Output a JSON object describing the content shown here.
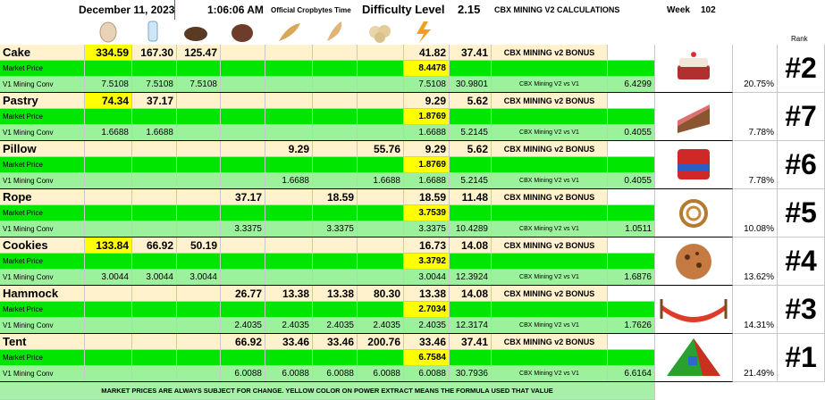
{
  "header": {
    "date": "December 11, 2023",
    "time": "1:06:06 AM",
    "time_label": "Official Cropbytes Time",
    "difficulty_label": "Difficulty Level",
    "difficulty": "2.15",
    "title": "CBX MINING V2 CALCULATIONS",
    "week_label": "Week",
    "week": "102",
    "rank_label": "Rank"
  },
  "blocks": [
    {
      "name": "Cake",
      "row1": [
        "334.59",
        "167.30",
        "125.47",
        null,
        null,
        null,
        null,
        "41.82",
        "37.41"
      ],
      "row1_highlight": [
        0
      ],
      "bonus_label": "CBX MINING v2 BONUS",
      "market_label": "Market Price",
      "market_price": "8.4478",
      "conv_label": "V1 Mining Conv",
      "conv": [
        "7.5108",
        "7.5108",
        "7.5108",
        null,
        null,
        null,
        null,
        "7.5108",
        "30.9801"
      ],
      "compare_label": "CBX Mining V2 vs V1",
      "compare_value": "6.4299",
      "percent": "20.75%",
      "rank": "#2"
    },
    {
      "name": "Pastry",
      "row1": [
        "74.34",
        "37.17",
        null,
        null,
        null,
        null,
        null,
        "9.29",
        "5.62"
      ],
      "row1_highlight": [
        0
      ],
      "bonus_label": "CBX MINING v2 BONUS",
      "market_label": "Market Price",
      "market_price": "1.8769",
      "conv_label": "V1 Mining Conv",
      "conv": [
        "1.6688",
        "1.6688",
        null,
        null,
        null,
        null,
        null,
        "1.6688",
        "5.2145"
      ],
      "compare_label": "CBX Mining V2 vs V1",
      "compare_value": "0.4055",
      "percent": "7.78%",
      "rank": "#7"
    },
    {
      "name": "Pillow",
      "row1": [
        null,
        null,
        null,
        null,
        "9.29",
        null,
        "55.76",
        "9.29",
        "5.62"
      ],
      "row1_highlight": [],
      "bonus_label": "CBX MINING v2 BONUS",
      "market_label": "Market Price",
      "market_price": "1.8769",
      "conv_label": "V1 Mining Conv",
      "conv": [
        null,
        null,
        null,
        null,
        "1.6688",
        null,
        "1.6688",
        "1.6688",
        "5.2145"
      ],
      "compare_label": "CBX Mining V2 vs V1",
      "compare_value": "0.4055",
      "percent": "7.78%",
      "rank": "#6"
    },
    {
      "name": "Rope",
      "row1": [
        null,
        null,
        null,
        "37.17",
        null,
        "18.59",
        null,
        "18.59",
        "11.48"
      ],
      "row1_highlight": [],
      "bonus_label": "CBX MINING v2 BONUS",
      "market_label": "Market Price",
      "market_price": "3.7539",
      "conv_label": "V1 Mining Conv",
      "conv": [
        null,
        null,
        null,
        "3.3375",
        null,
        "3.3375",
        null,
        "3.3375",
        "10.4289"
      ],
      "compare_label": "CBX Mining V2 vs V1",
      "compare_value": "1.0511",
      "percent": "10.08%",
      "rank": "#5"
    },
    {
      "name": "Cookies",
      "row1": [
        "133.84",
        "66.92",
        "50.19",
        null,
        null,
        null,
        null,
        "16.73",
        "14.08"
      ],
      "row1_highlight": [
        0
      ],
      "bonus_label": "CBX MINING v2 BONUS",
      "market_label": "Market Price",
      "market_price": "3.3792",
      "conv_label": "V1 Mining Conv",
      "conv": [
        "3.0044",
        "3.0044",
        "3.0044",
        null,
        null,
        null,
        null,
        "3.0044",
        "12.3924"
      ],
      "compare_label": "CBX Mining V2 vs V1",
      "compare_value": "1.6876",
      "percent": "13.62%",
      "rank": "#4"
    },
    {
      "name": "Hammock",
      "row1": [
        null,
        null,
        null,
        "26.77",
        "13.38",
        "13.38",
        "80.30",
        "13.38",
        "14.08"
      ],
      "row1_highlight": [],
      "bonus_label": "CBX MINING v2 BONUS",
      "market_label": "Market Price",
      "market_price": "2.7034",
      "conv_label": "V1 Mining Conv",
      "conv": [
        null,
        null,
        null,
        "2.4035",
        "2.4035",
        "2.4035",
        "2.4035",
        "2.4035",
        "12.3174"
      ],
      "compare_label": "CBX Mining V2 vs V1",
      "compare_value": "1.7626",
      "percent": "14.31%",
      "rank": "#3"
    },
    {
      "name": "Tent",
      "row1": [
        null,
        null,
        null,
        "66.92",
        "33.46",
        "33.46",
        "200.76",
        "33.46",
        "37.41"
      ],
      "row1_highlight": [],
      "bonus_label": "CBX MINING v2 BONUS",
      "market_label": "Market Price",
      "market_price": "6.7584",
      "conv_label": "V1 Mining Conv",
      "conv": [
        null,
        null,
        null,
        "6.0088",
        "6.0088",
        "6.0088",
        "6.0088",
        "6.0088",
        "30.7936"
      ],
      "compare_label": "CBX Mining V2 vs V1",
      "compare_value": "6.6164",
      "percent": "21.49%",
      "rank": "#1"
    }
  ],
  "footer": "MARKET PRICES ARE ALWAYS SUBJECT FOR CHANGE.  YELLOW COLOR ON POWER EXTRACT MEANS THE FORMULA USED THAT VALUE"
}
